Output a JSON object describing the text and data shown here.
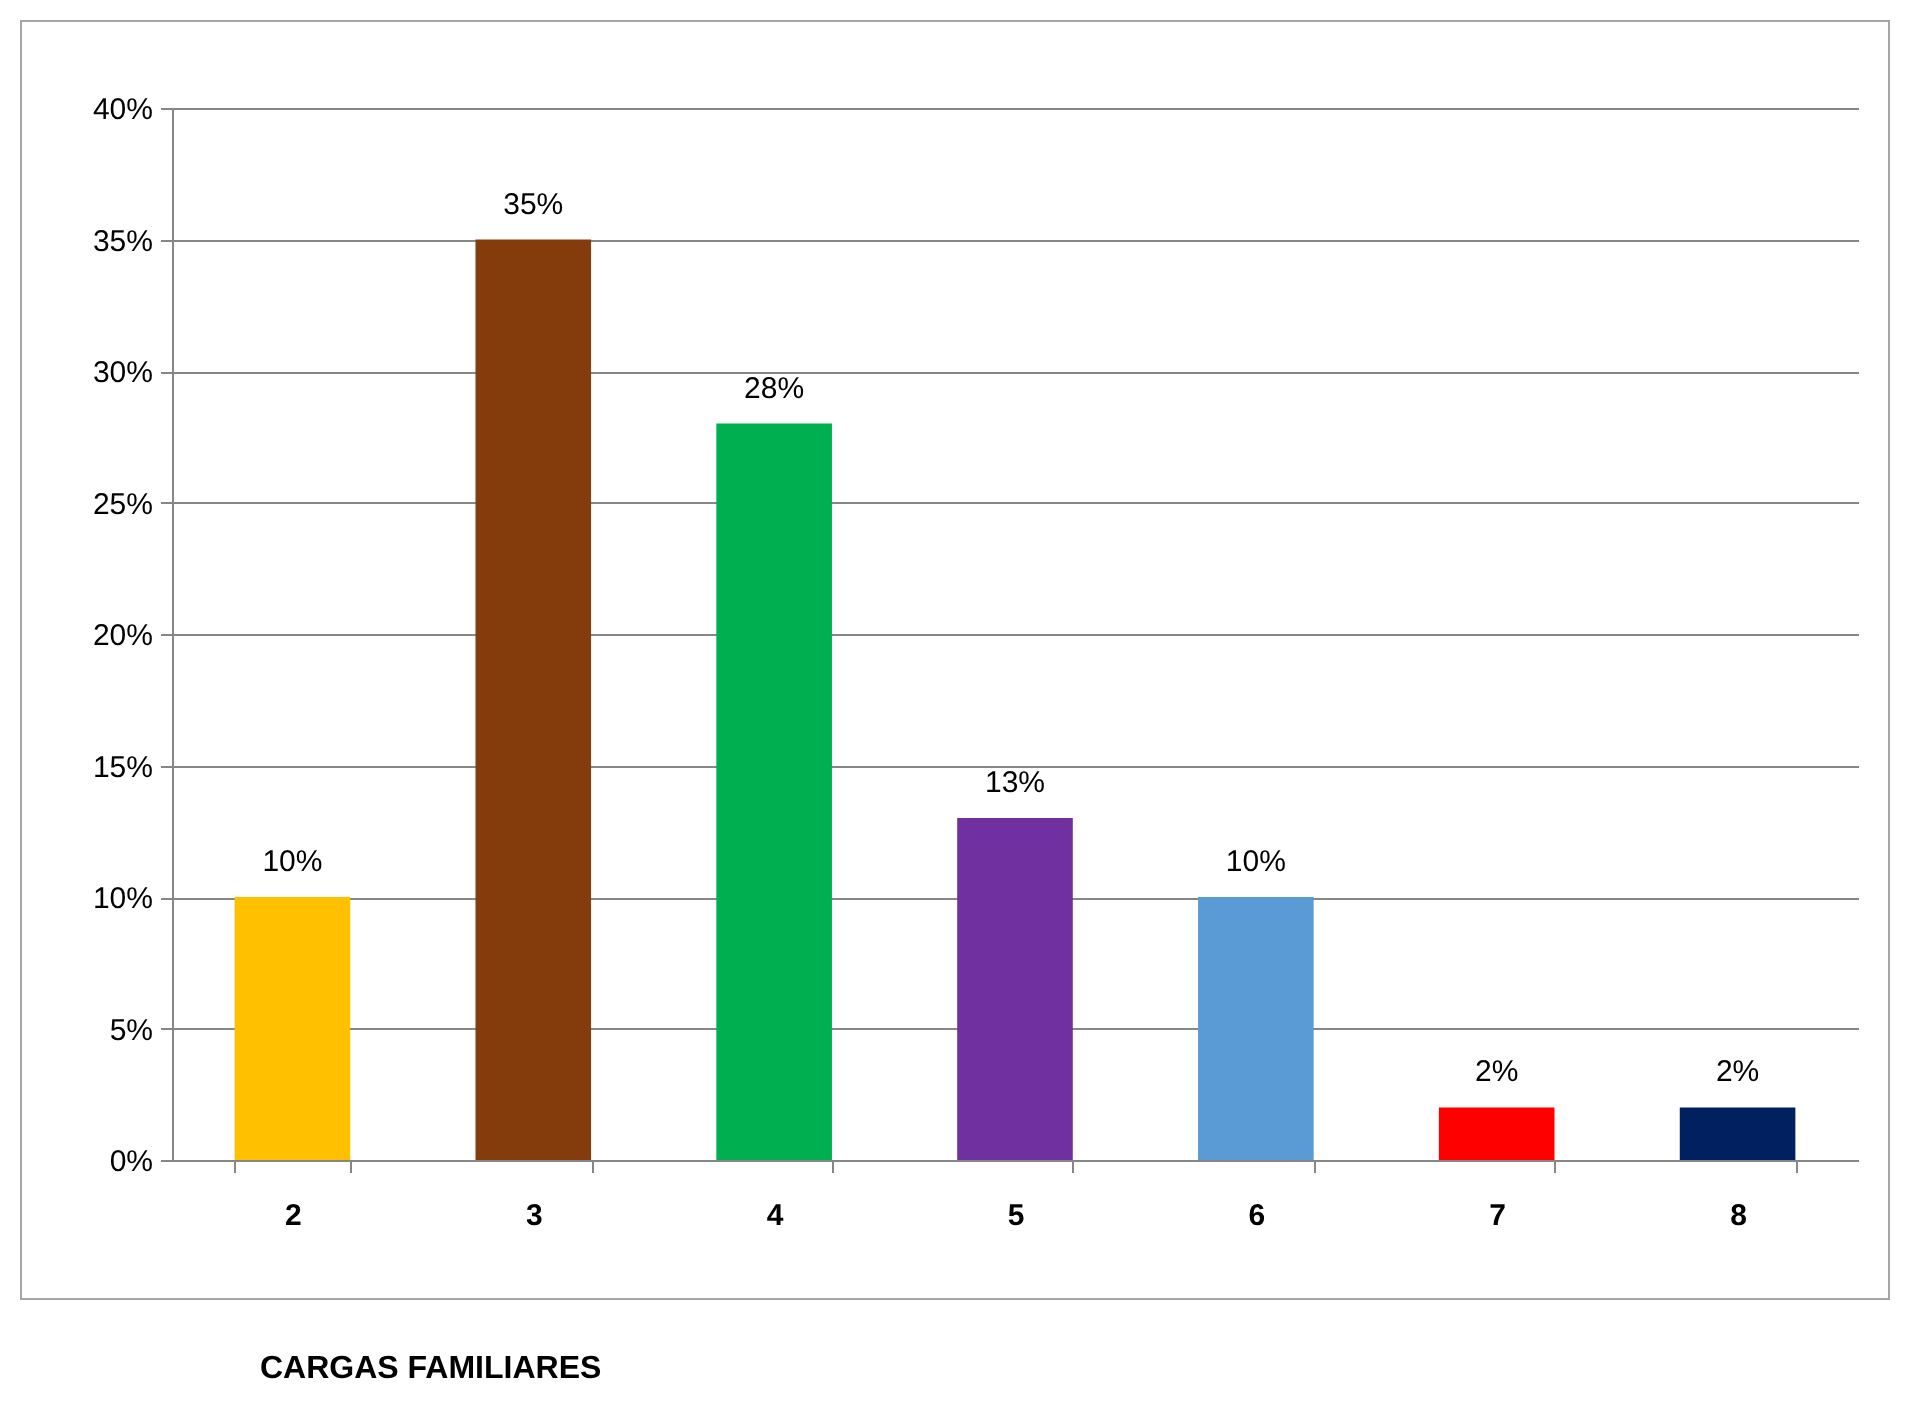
{
  "chart_data": {
    "type": "bar",
    "annotations": [
      "CARGAS FAMILIARES"
    ],
    "categories": [
      "2",
      "3",
      "4",
      "5",
      "6",
      "7",
      "8"
    ],
    "values": [
      10,
      35,
      28,
      13,
      10,
      2,
      2
    ],
    "colors": [
      "#ffc000",
      "#843c0c",
      "#00b050",
      "#7030a0",
      "#5b9bd5",
      "#ff0000",
      "#002060"
    ],
    "value_labels": [
      "10%",
      "35%",
      "28%",
      "13%",
      "10%",
      "2%",
      "2%"
    ],
    "ylim": [
      0,
      40
    ],
    "yticks": [
      {
        "value": 0,
        "label": "0%"
      },
      {
        "value": 5,
        "label": "5%"
      },
      {
        "value": 10,
        "label": "10%"
      },
      {
        "value": 15,
        "label": "15%"
      },
      {
        "value": 20,
        "label": "20%"
      },
      {
        "value": 25,
        "label": "25%"
      },
      {
        "value": 30,
        "label": "30%"
      },
      {
        "value": 35,
        "label": "35%"
      },
      {
        "value": 40,
        "label": "40%"
      }
    ],
    "grid": "y"
  }
}
